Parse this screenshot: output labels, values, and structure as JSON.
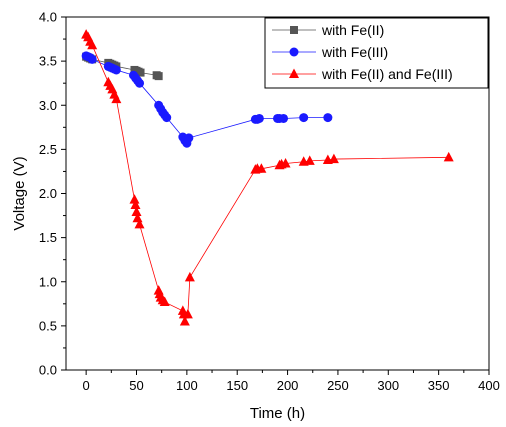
{
  "chart_data": {
    "type": "scatter",
    "xlabel": "Time (h)",
    "ylabel": "Voltage (V)",
    "xlim": [
      -20,
      400
    ],
    "ylim": [
      0,
      4
    ],
    "xticks": [
      0,
      50,
      100,
      150,
      200,
      250,
      300,
      350,
      400
    ],
    "yticks": [
      0.0,
      0.5,
      1.0,
      1.5,
      2.0,
      2.5,
      3.0,
      3.5,
      4.0
    ],
    "xtick_labels": [
      "0",
      "50",
      "100",
      "150",
      "200",
      "250",
      "300",
      "350",
      "400"
    ],
    "ytick_labels": [
      "0.0",
      "0.5",
      "1.0",
      "1.5",
      "2.0",
      "2.5",
      "3.0",
      "3.5",
      "4.0"
    ],
    "grid": false,
    "legend_position": "top-right",
    "series": [
      {
        "name": "with Fe(II)",
        "marker": "square",
        "color": "#555555",
        "x": [
          0,
          2,
          4,
          6,
          22,
          24,
          26,
          28,
          30,
          48,
          50,
          52,
          54,
          70,
          72
        ],
        "y": [
          3.55,
          3.54,
          3.53,
          3.52,
          3.48,
          3.47,
          3.46,
          3.45,
          3.44,
          3.4,
          3.39,
          3.38,
          3.37,
          3.34,
          3.33
        ]
      },
      {
        "name": "with Fe(III)",
        "marker": "circle",
        "color": "#1a1aff",
        "x": [
          0,
          2,
          4,
          6,
          22,
          24,
          26,
          28,
          30,
          47,
          49,
          51,
          53,
          72,
          74,
          76,
          78,
          80,
          96,
          98,
          100,
          102,
          168,
          170,
          172,
          190,
          192,
          196,
          216,
          240
        ],
        "y": [
          3.56,
          3.55,
          3.54,
          3.52,
          3.44,
          3.43,
          3.42,
          3.41,
          3.4,
          3.34,
          3.31,
          3.28,
          3.25,
          3.0,
          2.96,
          2.92,
          2.89,
          2.86,
          2.64,
          2.6,
          2.57,
          2.63,
          2.84,
          2.84,
          2.85,
          2.85,
          2.85,
          2.85,
          2.86,
          2.86
        ]
      },
      {
        "name": "with Fe(II) and Fe(III)",
        "marker": "triangle",
        "color": "#ff0000",
        "x": [
          0,
          2,
          4,
          6,
          22,
          24,
          26,
          28,
          30,
          48,
          49,
          50,
          51,
          53,
          72,
          73,
          74,
          76,
          78,
          96,
          97,
          98,
          101,
          103,
          168,
          170,
          174,
          192,
          194,
          198,
          216,
          222,
          240,
          246,
          360
        ],
        "y": [
          3.8,
          3.77,
          3.72,
          3.68,
          3.26,
          3.22,
          3.18,
          3.12,
          3.07,
          1.93,
          1.87,
          1.79,
          1.72,
          1.65,
          0.9,
          0.86,
          0.82,
          0.79,
          0.77,
          0.67,
          0.63,
          0.55,
          0.63,
          1.05,
          2.27,
          2.28,
          2.28,
          2.32,
          2.33,
          2.34,
          2.36,
          2.37,
          2.38,
          2.39,
          2.41
        ]
      }
    ]
  }
}
